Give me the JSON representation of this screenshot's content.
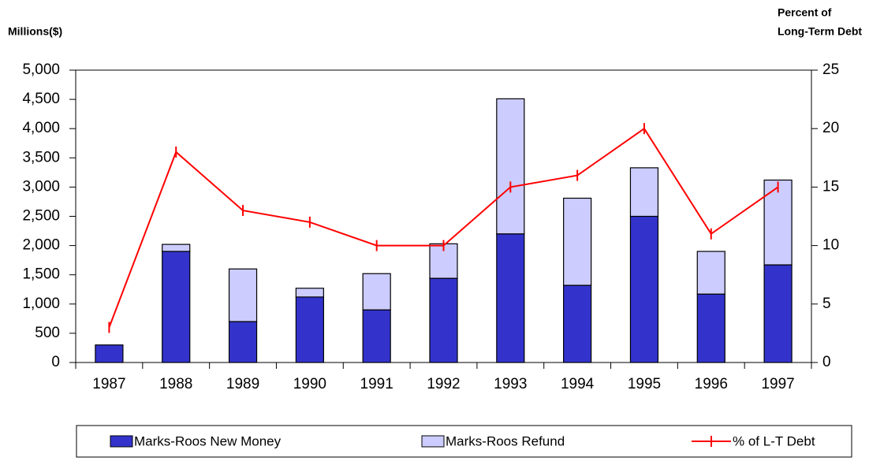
{
  "chart_data": {
    "type": "bar",
    "y_label": "Millions($)",
    "y2_label": [
      "Percent of",
      "Long-Term Debt"
    ],
    "categories": [
      "1987",
      "1988",
      "1989",
      "1990",
      "1991",
      "1992",
      "1993",
      "1994",
      "1995",
      "1996",
      "1997"
    ],
    "series": [
      {
        "name": "Marks-Roos New Money",
        "color": "#3333cc",
        "type": "bar",
        "values": [
          300,
          1900,
          700,
          1120,
          900,
          1440,
          2200,
          1320,
          2500,
          1170,
          1670
        ]
      },
      {
        "name": "Marks-Roos Refund",
        "color": "#ccccff",
        "type": "bar",
        "values": [
          0,
          120,
          900,
          150,
          620,
          590,
          2310,
          1490,
          830,
          730,
          1450
        ]
      },
      {
        "name": "% of L-T Debt",
        "color": "#ff0000",
        "type": "line",
        "axis": "y2",
        "values": [
          3,
          18,
          13,
          12,
          10,
          10,
          15,
          16,
          20,
          11,
          15
        ]
      }
    ],
    "stacked": true,
    "ylim": [
      0,
      5000
    ],
    "yticks": [
      0,
      500,
      {
        "value": 1000,
        "label": "1,000"
      },
      {
        "value": 1500,
        "label": "1,500"
      },
      {
        "value": 2000,
        "label": "2,000"
      },
      {
        "value": 2500,
        "label": "2,500"
      },
      {
        "value": 3000,
        "label": "3,000"
      },
      {
        "value": 3500,
        "label": "3,500"
      },
      {
        "value": 4000,
        "label": "4,000"
      },
      {
        "value": 4500,
        "label": "4,500"
      },
      {
        "value": 5000,
        "label": "5,000"
      }
    ],
    "y2lim": [
      0,
      25
    ],
    "y2ticks": [
      0,
      5,
      10,
      15,
      20,
      25
    ],
    "grid": false,
    "legend": "bottom"
  }
}
